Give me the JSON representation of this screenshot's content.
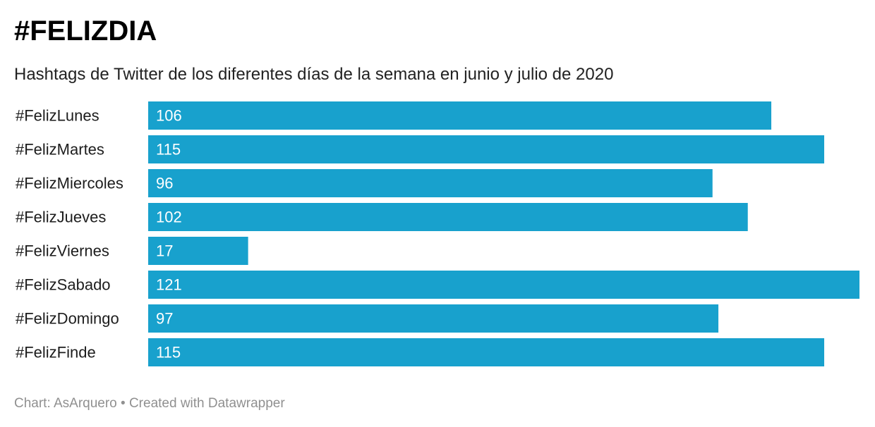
{
  "chart_data": {
    "type": "bar",
    "orientation": "horizontal",
    "title": "#FELIZDIA",
    "subtitle": "Hashtags de Twitter de los diferentes días de la semana en junio y julio de 2020",
    "categories": [
      "#FelizLunes",
      "#FelizMartes",
      "#FelizMiercoles",
      "#FelizJueves",
      "#FelizViernes",
      "#FelizSabado",
      "#FelizDomingo",
      "#FelizFinde"
    ],
    "values": [
      106,
      115,
      96,
      102,
      17,
      121,
      97,
      115
    ],
    "value_labels": [
      "106",
      "115",
      "96",
      "102",
      "17",
      "121",
      "97",
      "115"
    ],
    "xlim": [
      0,
      121
    ],
    "bar_color": "#18a1cd",
    "value_label_color": "#ffffff",
    "grid": false,
    "legend": "none"
  },
  "footer": {
    "credit": "Chart: AsArquero • Created with Datawrapper"
  }
}
